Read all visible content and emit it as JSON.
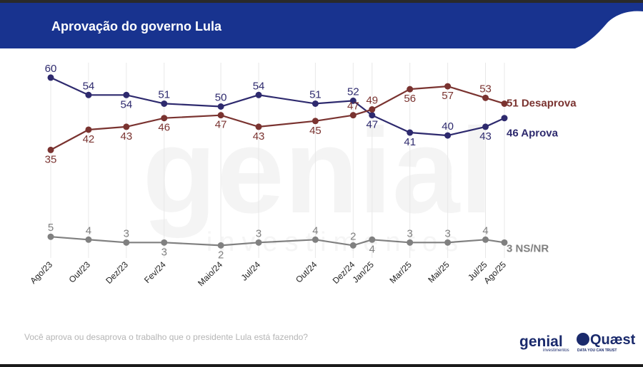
{
  "title": "Aprovação do governo Lula",
  "question": "Você aprova ou desaprova o trabalho que o presidente Lula está fazendo?",
  "watermark": {
    "main": "genial",
    "sub": "investimentos"
  },
  "logos": {
    "genial": {
      "name": "genial",
      "sub": "investimentos"
    },
    "quaest": {
      "name": "Quæst",
      "tagline": "DATA YOU CAN TRUST"
    }
  },
  "colors": {
    "header": "#18338f",
    "aprova": "#2e2a6e",
    "desaprova": "#7a3330",
    "nsnr": "#808080",
    "grid": "#e8e8e8"
  },
  "chart_data": {
    "type": "line",
    "title": "Aprovação do governo Lula",
    "categories": [
      "Ago/23",
      "Out/23",
      "Dez/23",
      "Fev/24",
      "Maio/24",
      "Jul/24",
      "Out/24",
      "Dez/24",
      "Jan/25",
      "Mar/25",
      "Mai/25",
      "Jul/25",
      "Ago/25"
    ],
    "x_months": [
      0,
      2,
      4,
      6,
      9,
      11,
      14,
      16,
      17,
      19,
      21,
      23,
      24
    ],
    "ylim": [
      0,
      65
    ],
    "grid": "vertical",
    "series": [
      {
        "name": "Aprova",
        "end_label": "46 Aprova",
        "color": "#2e2a6e",
        "values": [
          60,
          54,
          54,
          51,
          50,
          54,
          51,
          52,
          47,
          41,
          40,
          43,
          46
        ],
        "label_pos": [
          "above",
          "above",
          "below",
          "above",
          "above",
          "above",
          "above",
          "above",
          "below",
          "below",
          "above",
          "below",
          "none"
        ]
      },
      {
        "name": "Desaprova",
        "end_label": "51 Desaprova",
        "color": "#7a3330",
        "values": [
          35,
          42,
          43,
          46,
          47,
          43,
          45,
          47,
          49,
          56,
          57,
          53,
          51
        ],
        "label_pos": [
          "below",
          "below",
          "below",
          "below",
          "below",
          "below",
          "below",
          "above",
          "above",
          "below",
          "below",
          "above",
          "none"
        ]
      },
      {
        "name": "NS/NR",
        "end_label": "3 NS/NR",
        "color": "#808080",
        "values": [
          5,
          4,
          3,
          3,
          2,
          3,
          4,
          2,
          4,
          3,
          3,
          4,
          3
        ],
        "label_pos": [
          "above",
          "above",
          "above",
          "below",
          "below",
          "above",
          "above",
          "above",
          "below",
          "above",
          "above",
          "above",
          "none"
        ]
      }
    ]
  }
}
